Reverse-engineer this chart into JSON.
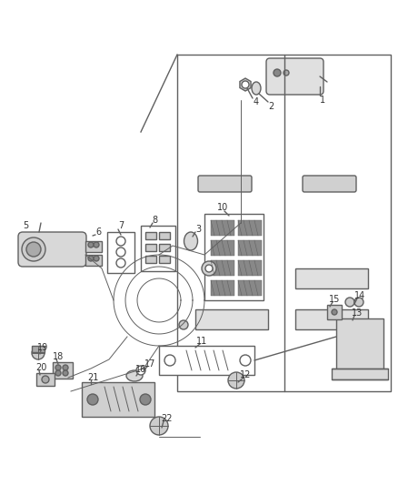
{
  "bg_color": "#ffffff",
  "line_color": "#606060",
  "label_color": "#333333",
  "figsize": [
    4.38,
    5.33
  ],
  "dpi": 100
}
